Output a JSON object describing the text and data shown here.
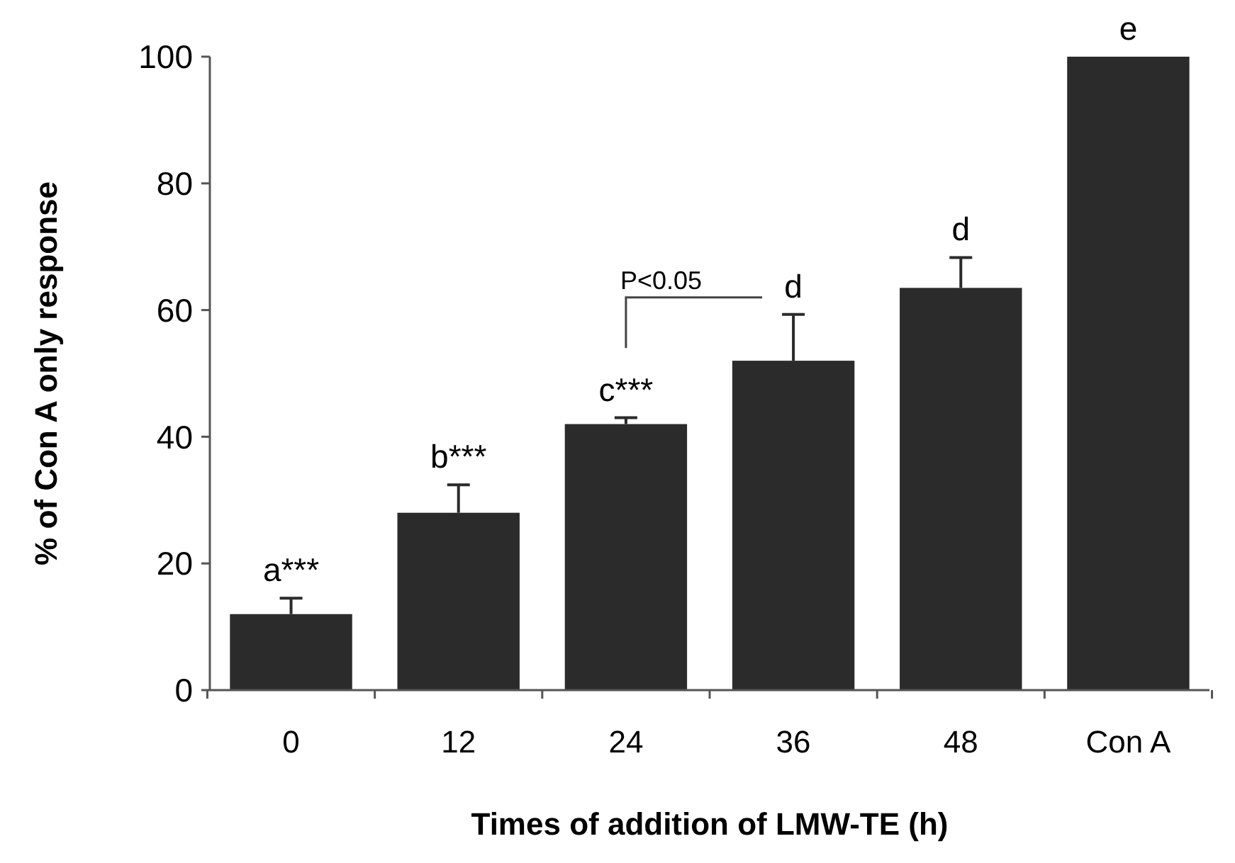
{
  "chart_data": {
    "type": "bar",
    "xlabel": "Times of addition of LMW-TE (h)",
    "ylabel": "% of Con A only response",
    "categories": [
      "0",
      "12",
      "24",
      "36",
      "48",
      "Con A"
    ],
    "values": [
      12,
      28,
      42,
      52,
      63.5,
      100
    ],
    "errors": [
      [
        12,
        14.5
      ],
      [
        28,
        32.4
      ],
      [
        42,
        43
      ],
      [
        52,
        59.3
      ],
      [
        63.5,
        68.3
      ],
      null
    ],
    "color": "#2b2b2b",
    "ylim": [
      0,
      100
    ],
    "yticks": [
      0,
      20,
      40,
      60,
      80,
      100
    ],
    "grid": false,
    "annotations": [
      "a***",
      "b***",
      "c***",
      "d",
      "d",
      "e",
      "P<0.05"
    ]
  }
}
